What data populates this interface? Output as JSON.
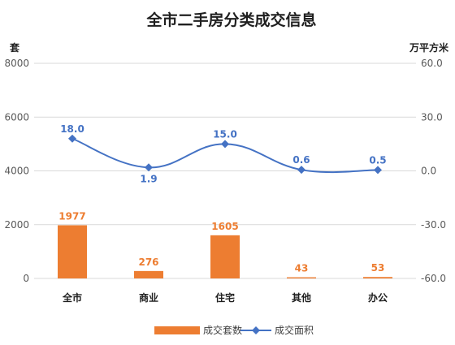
{
  "chart_data": {
    "type": "bar",
    "title": "全市二手房分类成交信息",
    "categories": [
      "全市",
      "商业",
      "住宅",
      "其他",
      "办公"
    ],
    "left_axis": {
      "unit_label": "套",
      "range": [
        0,
        8000
      ],
      "ticks": [
        "0",
        "2000",
        "4000",
        "6000",
        "8000"
      ]
    },
    "right_axis": {
      "unit_label": "万平方米",
      "range": [
        -60,
        60
      ],
      "ticks": [
        "-60.0",
        "-30.0",
        "0.0",
        "30.0",
        "60.0"
      ]
    },
    "series": [
      {
        "name": "成交套数",
        "type": "bar",
        "axis": "left",
        "color": "#ed7d31",
        "values": [
          1977,
          276,
          1605,
          43,
          53
        ],
        "labels": [
          "1977",
          "276",
          "1605",
          "43",
          "53"
        ]
      },
      {
        "name": "成交面积",
        "type": "line",
        "axis": "right",
        "color": "#4472c4",
        "marker": "diamond",
        "smooth": true,
        "values": [
          18.0,
          1.9,
          15.0,
          0.6,
          0.5
        ],
        "labels": [
          "18.0",
          "1.9",
          "15.0",
          "0.6",
          "0.5"
        ]
      }
    ],
    "grid": true,
    "legend_position": "bottom"
  }
}
